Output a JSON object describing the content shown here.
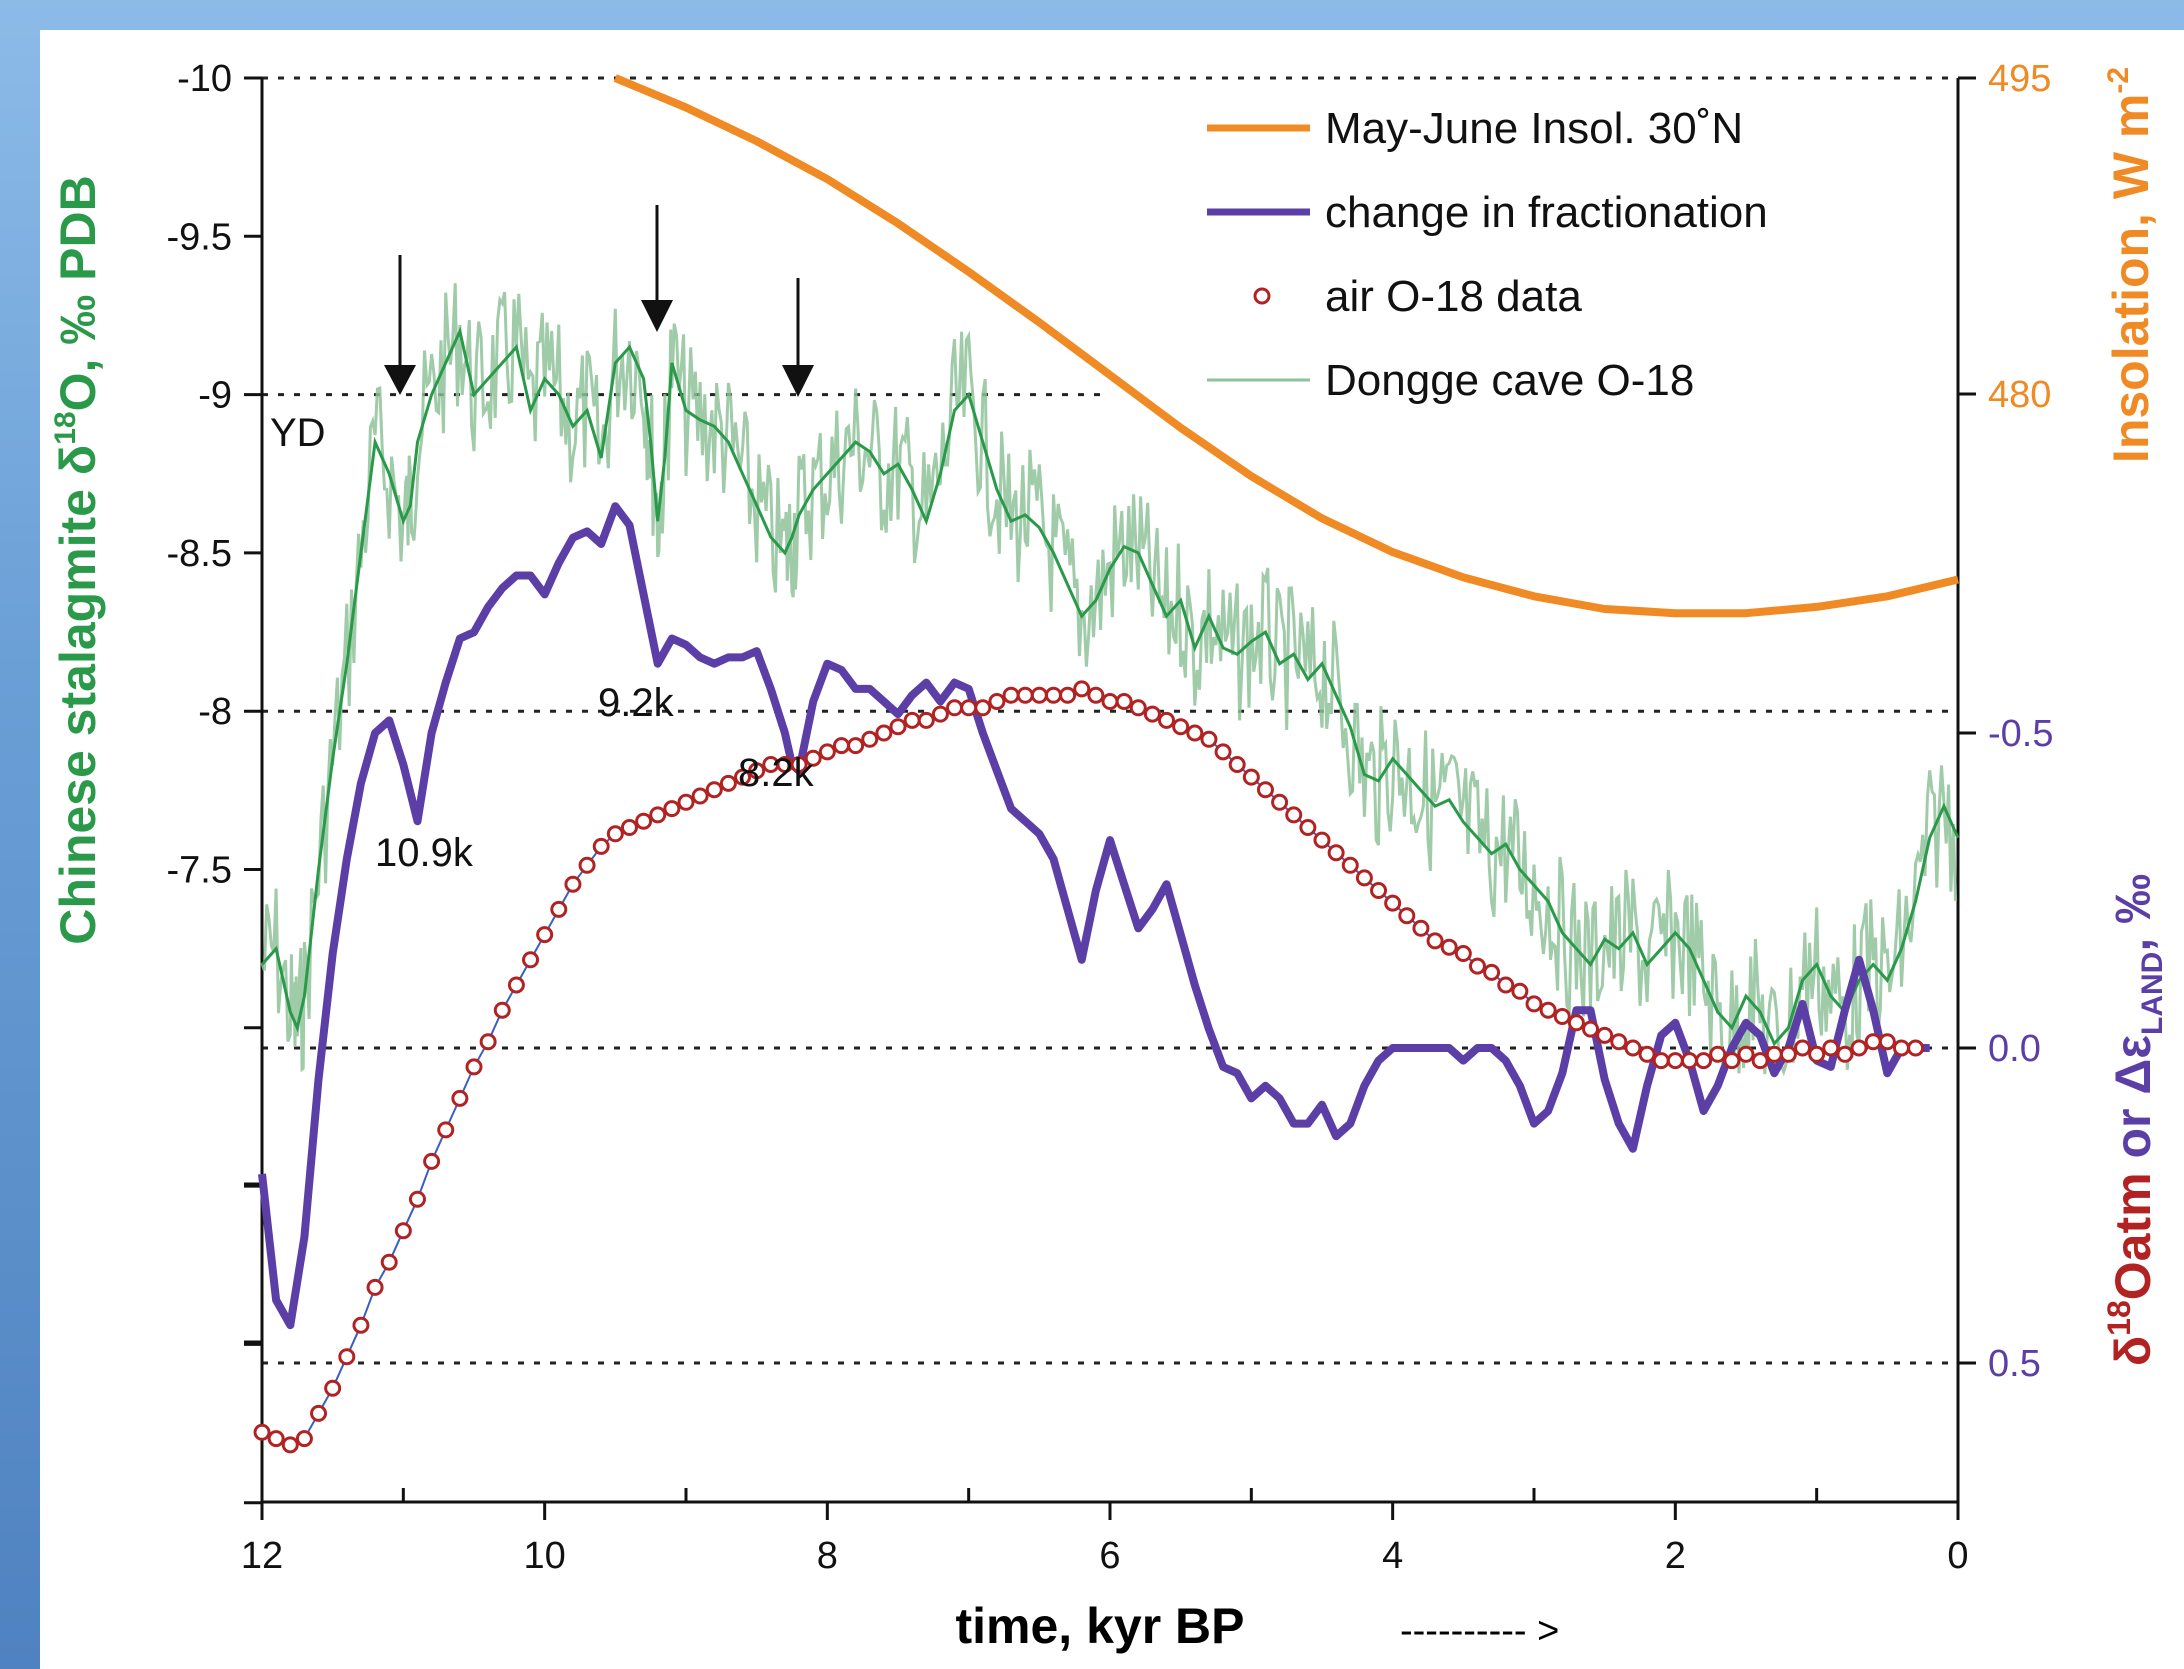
{
  "colors": {
    "stalagmite": "#2a9a4a",
    "stalagmite_raw": "#8fc29a",
    "insolation": "#f08a24",
    "fractionation": "#5b3fa6",
    "air": "#b22222",
    "air_left_axis": "#1e8a3c"
  },
  "chart_data": {
    "type": "line",
    "xlabel": "time, kyr BP",
    "xlabel_arrow": "---------- >",
    "x_ticks": [
      "12",
      "10",
      "8",
      "6",
      "4",
      "2",
      "0"
    ],
    "xlim": [
      12,
      0
    ],
    "left_axis": {
      "label_pre": "Chinese stalagmite δ",
      "label_sup": "18",
      "label_post": "O, ‰ PDB",
      "ticks": [
        "-10",
        "-9.5",
        "-9",
        "-8.5",
        "-8",
        "-7.5"
      ],
      "ylim": [
        -10,
        -5.5
      ]
    },
    "right_top_axis": {
      "label": "Insolation, W m",
      "label_sup": "-2",
      "ticks": [
        "495",
        "480"
      ],
      "ylim": [
        495,
        480
      ]
    },
    "right_bottom_axis": {
      "label_pre": "δ",
      "label_sup": "18",
      "label_mid": "Oatm",
      "label_or": " or ",
      "label_delta": "Δε",
      "label_sub": "LAND",
      "label_post": ", ‰",
      "ticks": [
        "-0.5",
        "0.0",
        "0.5"
      ],
      "ylim": [
        -0.5,
        0.5
      ]
    },
    "legend": [
      {
        "label": "May-June Insol. 30˚N",
        "style": "line-orange"
      },
      {
        "label": "change in fractionation",
        "style": "line-purple"
      },
      {
        "label": "air O-18 data",
        "style": "circle-red"
      },
      {
        "label": "Dongge cave O-18",
        "style": "line-green"
      }
    ],
    "annotations": {
      "yd": "YD",
      "e109": "10.9k",
      "e92": "9.2k",
      "e82": "8.2k"
    },
    "series": [
      {
        "name": "May-June Insol. 30˚N",
        "axis": "insolation",
        "x": [
          9.5,
          9.0,
          8.5,
          8.0,
          7.5,
          7.0,
          6.5,
          6.0,
          5.5,
          5.0,
          4.5,
          4.0,
          3.5,
          3.0,
          2.5,
          2.0,
          1.5,
          1.0,
          0.5,
          0.0
        ],
        "y": [
          495,
          493.6,
          492.0,
          490.2,
          488.1,
          485.8,
          483.4,
          480.9,
          478.4,
          476.1,
          474.1,
          472.5,
          471.3,
          470.4,
          469.8,
          469.6,
          469.6,
          469.9,
          470.4,
          471.2
        ]
      },
      {
        "name": "change in fractionation",
        "axis": "fraction",
        "x": [
          12.0,
          11.9,
          11.8,
          11.7,
          11.6,
          11.5,
          11.4,
          11.3,
          11.2,
          11.1,
          11.0,
          10.9,
          10.8,
          10.7,
          10.6,
          10.5,
          10.4,
          10.3,
          10.2,
          10.1,
          10.0,
          9.9,
          9.8,
          9.7,
          9.6,
          9.5,
          9.4,
          9.3,
          9.2,
          9.1,
          9.0,
          8.9,
          8.8,
          8.7,
          8.6,
          8.5,
          8.4,
          8.3,
          8.25,
          8.2,
          8.1,
          8.0,
          7.9,
          7.8,
          7.7,
          7.6,
          7.5,
          7.4,
          7.3,
          7.2,
          7.1,
          7.0,
          6.9,
          6.8,
          6.7,
          6.6,
          6.5,
          6.4,
          6.3,
          6.2,
          6.1,
          6.0,
          5.9,
          5.8,
          5.7,
          5.6,
          5.5,
          5.4,
          5.3,
          5.2,
          5.1,
          5.0,
          4.9,
          4.8,
          4.7,
          4.6,
          4.5,
          4.4,
          4.3,
          4.2,
          4.1,
          4.0,
          3.9,
          3.8,
          3.7,
          3.6,
          3.5,
          3.4,
          3.3,
          3.2,
          3.1,
          3.0,
          2.9,
          2.8,
          2.7,
          2.6,
          2.5,
          2.4,
          2.3,
          2.2,
          2.1,
          2.0,
          1.9,
          1.8,
          1.7,
          1.6,
          1.5,
          1.4,
          1.3,
          1.2,
          1.1,
          1.0,
          0.9,
          0.8,
          0.7,
          0.6,
          0.5,
          0.4,
          0.3,
          0.2
        ],
        "y": [
          0.2,
          0.4,
          0.44,
          0.3,
          0.05,
          -0.15,
          -0.3,
          -0.42,
          -0.5,
          -0.52,
          -0.45,
          -0.36,
          -0.5,
          -0.58,
          -0.65,
          -0.66,
          -0.7,
          -0.73,
          -0.75,
          -0.75,
          -0.72,
          -0.77,
          -0.81,
          -0.82,
          -0.8,
          -0.86,
          -0.83,
          -0.72,
          -0.61,
          -0.65,
          -0.64,
          -0.62,
          -0.61,
          -0.62,
          -0.62,
          -0.63,
          -0.57,
          -0.5,
          -0.45,
          -0.44,
          -0.55,
          -0.61,
          -0.6,
          -0.57,
          -0.57,
          -0.55,
          -0.53,
          -0.56,
          -0.58,
          -0.55,
          -0.58,
          -0.57,
          -0.5,
          -0.44,
          -0.38,
          -0.36,
          -0.34,
          -0.3,
          -0.22,
          -0.14,
          -0.25,
          -0.33,
          -0.26,
          -0.19,
          -0.22,
          -0.26,
          -0.18,
          -0.1,
          -0.03,
          0.03,
          0.04,
          0.08,
          0.06,
          0.08,
          0.12,
          0.12,
          0.09,
          0.14,
          0.12,
          0.06,
          0.02,
          0.0,
          0.0,
          0.0,
          0.0,
          0.0,
          0.02,
          0.0,
          0.0,
          0.02,
          0.06,
          0.12,
          0.1,
          0.04,
          -0.06,
          -0.06,
          0.05,
          0.12,
          0.16,
          0.06,
          -0.02,
          -0.04,
          0.02,
          0.1,
          0.06,
          0.0,
          -0.04,
          -0.02,
          0.04,
          0.0,
          -0.07,
          0.02,
          0.03,
          -0.06,
          -0.14,
          -0.06,
          0.04,
          0.0,
          0.0,
          0.0
        ]
      },
      {
        "name": "air O-18 data",
        "axis": "fraction",
        "x": [
          12.0,
          11.9,
          11.8,
          11.7,
          11.6,
          11.5,
          11.4,
          11.3,
          11.2,
          11.1,
          11.0,
          10.9,
          10.8,
          10.7,
          10.6,
          10.5,
          10.4,
          10.3,
          10.2,
          10.1,
          10.0,
          9.9,
          9.8,
          9.7,
          9.6,
          9.5,
          9.4,
          9.3,
          9.2,
          9.1,
          9.0,
          8.9,
          8.8,
          8.7,
          8.6,
          8.5,
          8.4,
          8.3,
          8.2,
          8.1,
          8.0,
          7.9,
          7.8,
          7.7,
          7.6,
          7.5,
          7.4,
          7.3,
          7.2,
          7.1,
          7.0,
          6.9,
          6.8,
          6.7,
          6.6,
          6.5,
          6.4,
          6.3,
          6.2,
          6.1,
          6.0,
          5.9,
          5.8,
          5.7,
          5.6,
          5.5,
          5.4,
          5.3,
          5.2,
          5.1,
          5.0,
          4.9,
          4.8,
          4.7,
          4.6,
          4.5,
          4.4,
          4.3,
          4.2,
          4.1,
          4.0,
          3.9,
          3.8,
          3.7,
          3.6,
          3.5,
          3.4,
          3.3,
          3.2,
          3.1,
          3.0,
          2.9,
          2.8,
          2.7,
          2.6,
          2.5,
          2.4,
          2.3,
          2.2,
          2.1,
          2.0,
          1.9,
          1.8,
          1.7,
          1.6,
          1.5,
          1.4,
          1.3,
          1.2,
          1.1,
          1.0,
          0.9,
          0.8,
          0.7,
          0.6,
          0.5,
          0.4,
          0.3
        ],
        "y": [
          0.61,
          0.62,
          0.63,
          0.62,
          0.58,
          0.54,
          0.49,
          0.44,
          0.38,
          0.34,
          0.29,
          0.24,
          0.18,
          0.13,
          0.08,
          0.03,
          -0.01,
          -0.06,
          -0.1,
          -0.14,
          -0.18,
          -0.22,
          -0.26,
          -0.29,
          -0.32,
          -0.34,
          -0.35,
          -0.36,
          -0.37,
          -0.38,
          -0.39,
          -0.4,
          -0.41,
          -0.42,
          -0.43,
          -0.44,
          -0.45,
          -0.45,
          -0.45,
          -0.46,
          -0.47,
          -0.48,
          -0.48,
          -0.49,
          -0.5,
          -0.51,
          -0.52,
          -0.52,
          -0.53,
          -0.54,
          -0.54,
          -0.54,
          -0.55,
          -0.56,
          -0.56,
          -0.56,
          -0.56,
          -0.56,
          -0.57,
          -0.56,
          -0.55,
          -0.55,
          -0.54,
          -0.53,
          -0.52,
          -0.51,
          -0.5,
          -0.49,
          -0.47,
          -0.45,
          -0.43,
          -0.41,
          -0.39,
          -0.37,
          -0.35,
          -0.33,
          -0.31,
          -0.29,
          -0.27,
          -0.25,
          -0.23,
          -0.21,
          -0.19,
          -0.17,
          -0.16,
          -0.15,
          -0.13,
          -0.12,
          -0.1,
          -0.09,
          -0.07,
          -0.06,
          -0.05,
          -0.04,
          -0.03,
          -0.02,
          -0.01,
          0.0,
          0.01,
          0.02,
          0.02,
          0.02,
          0.02,
          0.01,
          0.02,
          0.01,
          0.02,
          0.01,
          0.01,
          0.0,
          0.01,
          0.0,
          0.01,
          0.0,
          -0.01,
          -0.01,
          0.0,
          0.0
        ]
      },
      {
        "name": "Dongge cave O-18",
        "axis": "stalagmite",
        "x": [
          12.0,
          11.9,
          11.8,
          11.75,
          11.7,
          11.6,
          11.5,
          11.4,
          11.3,
          11.2,
          11.1,
          11.0,
          10.95,
          10.9,
          10.8,
          10.7,
          10.6,
          10.5,
          10.4,
          10.3,
          10.2,
          10.1,
          10.0,
          9.9,
          9.8,
          9.7,
          9.6,
          9.5,
          9.4,
          9.3,
          9.25,
          9.2,
          9.15,
          9.1,
          9.0,
          8.9,
          8.8,
          8.7,
          8.6,
          8.5,
          8.4,
          8.3,
          8.25,
          8.2,
          8.1,
          8.0,
          7.9,
          7.8,
          7.7,
          7.6,
          7.5,
          7.4,
          7.3,
          7.2,
          7.1,
          7.0,
          6.9,
          6.8,
          6.7,
          6.6,
          6.5,
          6.4,
          6.3,
          6.2,
          6.1,
          6.0,
          5.9,
          5.8,
          5.7,
          5.6,
          5.5,
          5.4,
          5.3,
          5.2,
          5.1,
          5.0,
          4.9,
          4.8,
          4.7,
          4.6,
          4.5,
          4.4,
          4.3,
          4.2,
          4.1,
          4.0,
          3.9,
          3.8,
          3.7,
          3.6,
          3.5,
          3.4,
          3.3,
          3.2,
          3.1,
          3.0,
          2.9,
          2.8,
          2.7,
          2.6,
          2.5,
          2.4,
          2.3,
          2.2,
          2.1,
          2.0,
          1.9,
          1.8,
          1.7,
          1.6,
          1.5,
          1.4,
          1.3,
          1.2,
          1.1,
          1.0,
          0.9,
          0.8,
          0.7,
          0.6,
          0.5,
          0.4,
          0.3,
          0.2,
          0.1,
          0.0
        ],
        "y": [
          -7.2,
          -7.25,
          -7.05,
          -7.0,
          -7.1,
          -7.5,
          -7.85,
          -8.15,
          -8.5,
          -8.85,
          -8.75,
          -8.6,
          -8.65,
          -8.85,
          -9.0,
          -9.1,
          -9.2,
          -9.0,
          -9.05,
          -9.1,
          -9.15,
          -8.95,
          -9.05,
          -9.0,
          -8.9,
          -8.95,
          -8.8,
          -9.1,
          -9.15,
          -9.05,
          -8.85,
          -8.6,
          -8.8,
          -9.1,
          -8.95,
          -8.92,
          -8.9,
          -8.85,
          -8.75,
          -8.65,
          -8.55,
          -8.5,
          -8.55,
          -8.62,
          -8.7,
          -8.75,
          -8.8,
          -8.85,
          -8.82,
          -8.75,
          -8.78,
          -8.7,
          -8.6,
          -8.75,
          -8.95,
          -9.0,
          -8.85,
          -8.7,
          -8.6,
          -8.62,
          -8.58,
          -8.5,
          -8.4,
          -8.3,
          -8.35,
          -8.45,
          -8.52,
          -8.5,
          -8.4,
          -8.3,
          -8.35,
          -8.2,
          -8.3,
          -8.2,
          -8.18,
          -8.22,
          -8.25,
          -8.15,
          -8.18,
          -8.1,
          -8.15,
          -8.05,
          -7.95,
          -7.8,
          -7.78,
          -7.85,
          -7.8,
          -7.75,
          -7.7,
          -7.72,
          -7.65,
          -7.6,
          -7.55,
          -7.58,
          -7.5,
          -7.45,
          -7.4,
          -7.3,
          -7.25,
          -7.2,
          -7.28,
          -7.25,
          -7.3,
          -7.2,
          -7.25,
          -7.3,
          -7.25,
          -7.15,
          -7.05,
          -7.0,
          -7.1,
          -7.05,
          -6.95,
          -7.0,
          -7.15,
          -7.2,
          -7.1,
          -7.05,
          -7.15,
          -7.2,
          -7.15,
          -7.25,
          -7.4,
          -7.6,
          -7.7,
          -7.6
        ]
      }
    ]
  }
}
